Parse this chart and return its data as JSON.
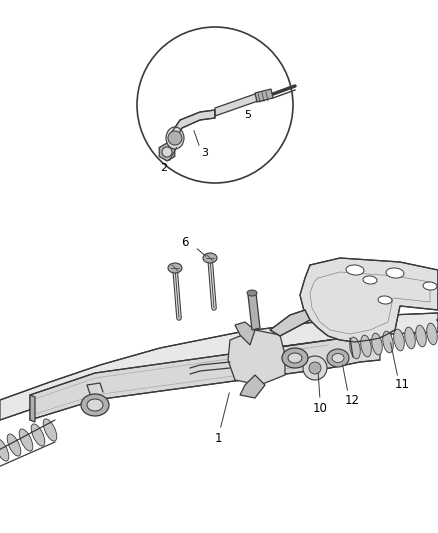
{
  "background_color": "#ffffff",
  "fig_width": 4.38,
  "fig_height": 5.33,
  "dpi": 100,
  "line_color": "#3a3a3a",
  "light_gray": "#d8d8d8",
  "mid_gray": "#b0b0b0",
  "dark_gray": "#888888"
}
